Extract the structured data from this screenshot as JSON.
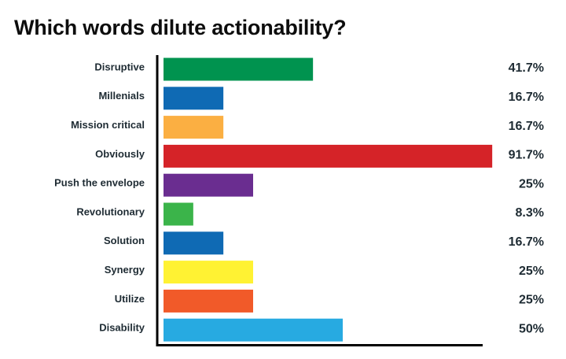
{
  "chart_data": {
    "type": "bar",
    "orientation": "horizontal",
    "title": "Which words dilute actionability?",
    "xlabel": "",
    "ylabel": "",
    "xlim": [
      0,
      100
    ],
    "grid": false,
    "categories": [
      "Disruptive",
      "Millenials",
      "Mission critical",
      "Obviously",
      "Push the envelope",
      "Revolutionary",
      "Solution",
      "Synergy",
      "Utilize",
      "Disability"
    ],
    "values": [
      41.7,
      16.7,
      16.7,
      91.7,
      25,
      8.3,
      16.7,
      25,
      25,
      50
    ],
    "value_labels": [
      "41.7%",
      "16.7%",
      "16.7%",
      "91.7%",
      "25%",
      "8.3%",
      "16.7%",
      "25%",
      "25%",
      "50%"
    ],
    "colors": [
      "#00934f",
      "#0f6ab4",
      "#fbaf42",
      "#d52328",
      "#6a2d90",
      "#3bb44a",
      "#0f6ab4",
      "#fff233",
      "#f15a29",
      "#27aae1"
    ]
  }
}
